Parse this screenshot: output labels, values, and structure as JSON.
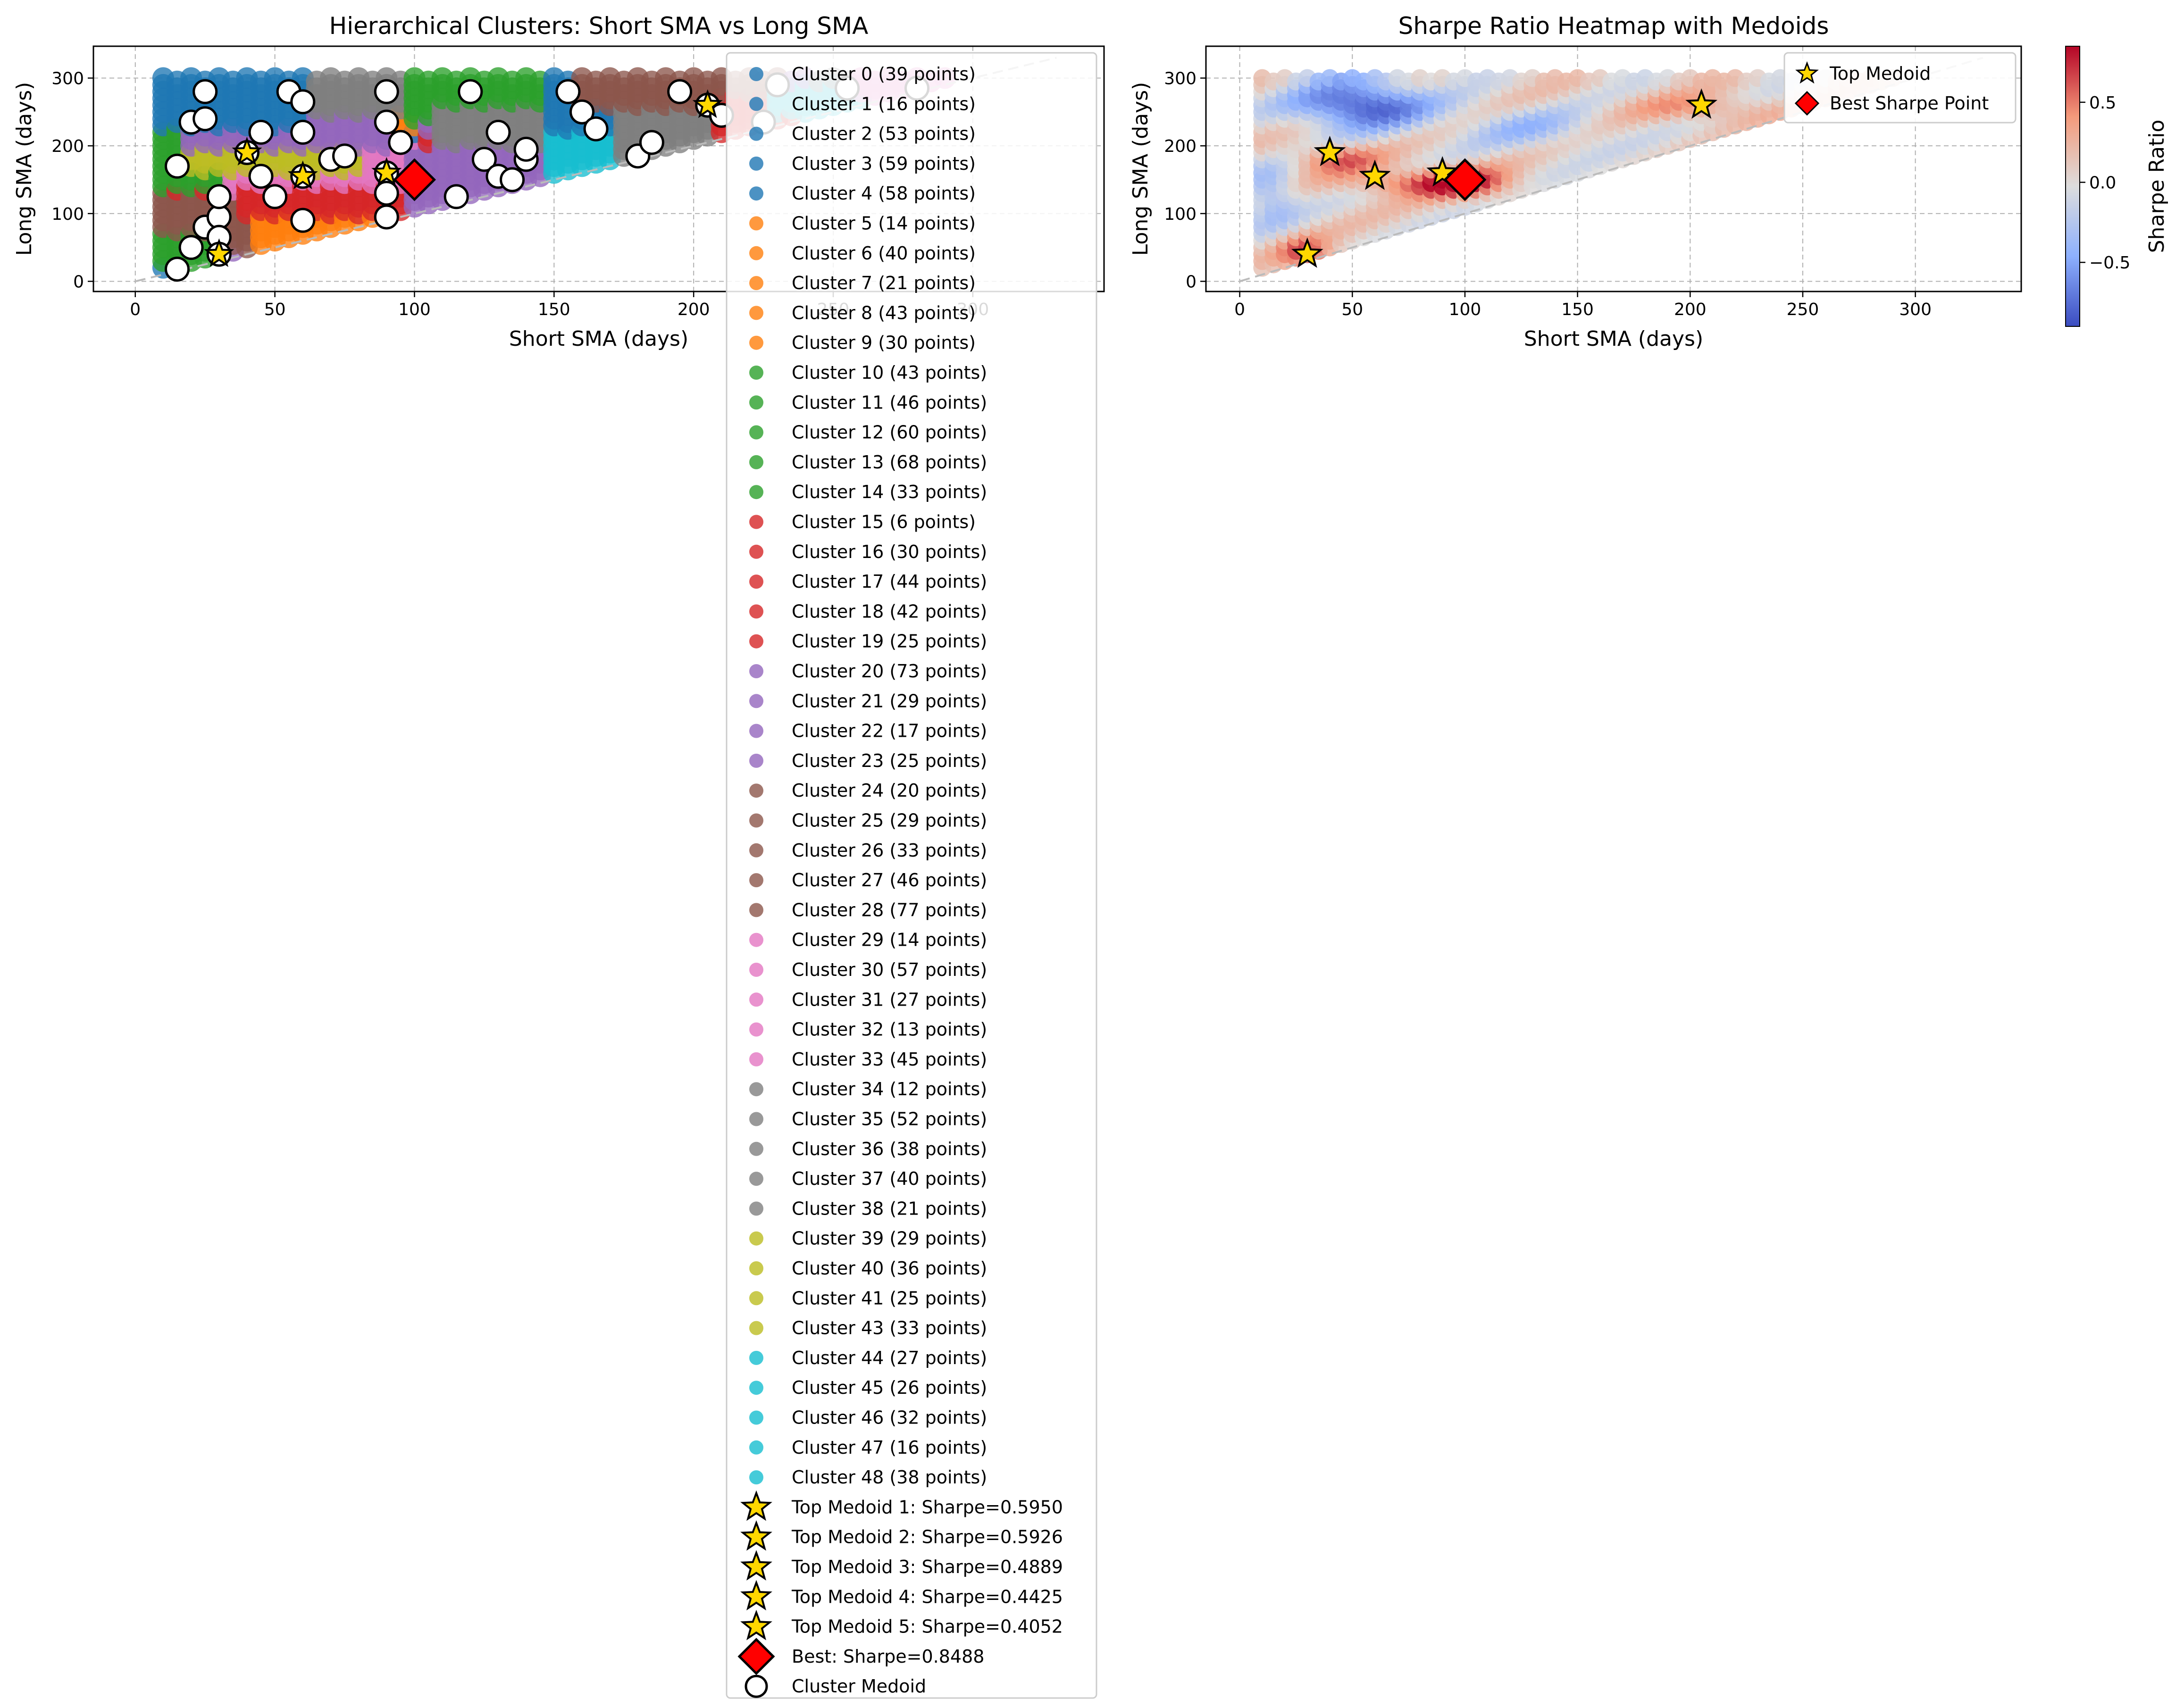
{
  "chart_data": [
    {
      "type": "scatter",
      "title": "Hierarchical Clusters: Short SMA vs Long SMA",
      "xlabel": "Short SMA (days)",
      "ylabel": "Long SMA (days)",
      "xlim": [
        -15,
        347
      ],
      "ylim": [
        -15,
        347
      ],
      "xticks": [
        0,
        50,
        100,
        150,
        200,
        250,
        300
      ],
      "yticks": [
        0,
        100,
        200,
        300
      ],
      "grid": true,
      "legend_position": "right, overlapping plot and extending below",
      "cluster_colors": [
        "#1f77b4",
        "#ff7f0e",
        "#2ca02c",
        "#d62728",
        "#9467bd",
        "#8c564b",
        "#e377c2",
        "#7f7f7f",
        "#bcbd22",
        "#17becf"
      ],
      "clusters": [
        {
          "label": "Cluster 0 (39 points)",
          "color": "#1f77b4"
        },
        {
          "label": "Cluster 1 (16 points)",
          "color": "#1f77b4"
        },
        {
          "label": "Cluster 2 (53 points)",
          "color": "#1f77b4"
        },
        {
          "label": "Cluster 3 (59 points)",
          "color": "#1f77b4"
        },
        {
          "label": "Cluster 4 (58 points)",
          "color": "#1f77b4"
        },
        {
          "label": "Cluster 5 (14 points)",
          "color": "#ff7f0e"
        },
        {
          "label": "Cluster 6 (40 points)",
          "color": "#ff7f0e"
        },
        {
          "label": "Cluster 7 (21 points)",
          "color": "#ff7f0e"
        },
        {
          "label": "Cluster 8 (43 points)",
          "color": "#ff7f0e"
        },
        {
          "label": "Cluster 9 (30 points)",
          "color": "#ff7f0e"
        },
        {
          "label": "Cluster 10 (43 points)",
          "color": "#2ca02c"
        },
        {
          "label": "Cluster 11 (46 points)",
          "color": "#2ca02c"
        },
        {
          "label": "Cluster 12 (60 points)",
          "color": "#2ca02c"
        },
        {
          "label": "Cluster 13 (68 points)",
          "color": "#2ca02c"
        },
        {
          "label": "Cluster 14 (33 points)",
          "color": "#2ca02c"
        },
        {
          "label": "Cluster 15 (6 points)",
          "color": "#d62728"
        },
        {
          "label": "Cluster 16 (30 points)",
          "color": "#d62728"
        },
        {
          "label": "Cluster 17 (44 points)",
          "color": "#d62728"
        },
        {
          "label": "Cluster 18 (42 points)",
          "color": "#d62728"
        },
        {
          "label": "Cluster 19 (25 points)",
          "color": "#d62728"
        },
        {
          "label": "Cluster 20 (73 points)",
          "color": "#9467bd"
        },
        {
          "label": "Cluster 21 (29 points)",
          "color": "#9467bd"
        },
        {
          "label": "Cluster 22 (17 points)",
          "color": "#9467bd"
        },
        {
          "label": "Cluster 23 (25 points)",
          "color": "#9467bd"
        },
        {
          "label": "Cluster 24 (20 points)",
          "color": "#8c564b"
        },
        {
          "label": "Cluster 25 (29 points)",
          "color": "#8c564b"
        },
        {
          "label": "Cluster 26 (33 points)",
          "color": "#8c564b"
        },
        {
          "label": "Cluster 27 (46 points)",
          "color": "#8c564b"
        },
        {
          "label": "Cluster 28 (77 points)",
          "color": "#8c564b"
        },
        {
          "label": "Cluster 29 (14 points)",
          "color": "#e377c2"
        },
        {
          "label": "Cluster 30 (57 points)",
          "color": "#e377c2"
        },
        {
          "label": "Cluster 31 (27 points)",
          "color": "#e377c2"
        },
        {
          "label": "Cluster 32 (13 points)",
          "color": "#e377c2"
        },
        {
          "label": "Cluster 33 (45 points)",
          "color": "#e377c2"
        },
        {
          "label": "Cluster 34 (12 points)",
          "color": "#7f7f7f"
        },
        {
          "label": "Cluster 35 (52 points)",
          "color": "#7f7f7f"
        },
        {
          "label": "Cluster 36 (38 points)",
          "color": "#7f7f7f"
        },
        {
          "label": "Cluster 37 (40 points)",
          "color": "#7f7f7f"
        },
        {
          "label": "Cluster 38 (21 points)",
          "color": "#7f7f7f"
        },
        {
          "label": "Cluster 39 (29 points)",
          "color": "#bcbd22"
        },
        {
          "label": "Cluster 40 (36 points)",
          "color": "#bcbd22"
        },
        {
          "label": "Cluster 41 (25 points)",
          "color": "#bcbd22"
        },
        {
          "label": "Cluster 43 (33 points)",
          "color": "#bcbd22"
        },
        {
          "label": "Cluster 44 (27 points)",
          "color": "#17becf"
        },
        {
          "label": "Cluster 45 (26 points)",
          "color": "#17becf"
        },
        {
          "label": "Cluster 46 (32 points)",
          "color": "#17becf"
        },
        {
          "label": "Cluster 47 (16 points)",
          "color": "#17becf"
        },
        {
          "label": "Cluster 48 (38 points)",
          "color": "#17becf"
        }
      ],
      "cluster_regions": [
        {
          "color": "#2ca02c",
          "polygon": [
            [
              10,
              140
            ],
            [
              30,
              160
            ],
            [
              25,
              300
            ],
            [
              10,
              300
            ]
          ]
        },
        {
          "color": "#8c564b",
          "polygon": [
            [
              10,
              50
            ],
            [
              35,
              75
            ],
            [
              40,
              130
            ],
            [
              10,
              130
            ]
          ]
        },
        {
          "color": "#2ca02c",
          "polygon": [
            [
              10,
              25
            ],
            [
              30,
              45
            ],
            [
              30,
              70
            ],
            [
              10,
              60
            ]
          ]
        },
        {
          "color": "#ff7f0e",
          "polygon": [
            [
              45,
              55
            ],
            [
              110,
              125
            ],
            [
              100,
              135
            ],
            [
              45,
              110
            ]
          ]
        },
        {
          "color": "#d62728",
          "polygon": [
            [
              40,
              100
            ],
            [
              100,
              110
            ],
            [
              95,
              150
            ],
            [
              40,
              170
            ]
          ]
        },
        {
          "color": "#e377c2",
          "polygon": [
            [
              40,
              145
            ],
            [
              100,
              160
            ],
            [
              95,
              205
            ],
            [
              40,
              215
            ]
          ]
        },
        {
          "color": "#bcbd22",
          "polygon": [
            [
              20,
              175
            ],
            [
              80,
              165
            ],
            [
              80,
              215
            ],
            [
              20,
              220
            ]
          ]
        },
        {
          "color": "#9467bd",
          "polygon": [
            [
              20,
              200
            ],
            [
              90,
              215
            ],
            [
              85,
              250
            ],
            [
              20,
              250
            ]
          ]
        },
        {
          "color": "#7f7f7f",
          "polygon": [
            [
              25,
              250
            ],
            [
              100,
              250
            ],
            [
              110,
              300
            ],
            [
              25,
              300
            ]
          ]
        },
        {
          "color": "#1f77b4",
          "polygon": [
            [
              10,
              230
            ],
            [
              60,
              240
            ],
            [
              60,
              300
            ],
            [
              10,
              300
            ]
          ]
        },
        {
          "color": "#2ca02c",
          "polygon": [
            [
              100,
              245
            ],
            [
              160,
              240
            ],
            [
              170,
              300
            ],
            [
              100,
              300
            ]
          ]
        },
        {
          "color": "#7f7f7f",
          "polygon": [
            [
              110,
              200
            ],
            [
              170,
              210
            ],
            [
              175,
              260
            ],
            [
              110,
              260
            ]
          ]
        },
        {
          "color": "#9467bd",
          "polygon": [
            [
              100,
              110
            ],
            [
              150,
              150
            ],
            [
              140,
              200
            ],
            [
              100,
              190
            ]
          ]
        },
        {
          "color": "#1f77b4",
          "polygon": [
            [
              150,
              160
            ],
            [
              230,
              240
            ],
            [
              230,
              300
            ],
            [
              150,
              300
            ]
          ]
        },
        {
          "color": "#17becf",
          "polygon": [
            [
              150,
              160
            ],
            [
              200,
              200
            ],
            [
              190,
              220
            ],
            [
              150,
              190
            ]
          ]
        },
        {
          "color": "#8c564b",
          "polygon": [
            [
              160,
              260
            ],
            [
              230,
              270
            ],
            [
              230,
              300
            ],
            [
              160,
              300
            ]
          ]
        },
        {
          "color": "#7f7f7f",
          "polygon": [
            [
              175,
              180
            ],
            [
              230,
              235
            ],
            [
              215,
              255
            ],
            [
              175,
              230
            ]
          ]
        },
        {
          "color": "#d62728",
          "polygon": [
            [
              210,
              220
            ],
            [
              260,
              265
            ],
            [
              245,
              275
            ],
            [
              210,
              240
            ]
          ]
        },
        {
          "color": "#17becf",
          "polygon": [
            [
              230,
              250
            ],
            [
              270,
              270
            ],
            [
              260,
              290
            ],
            [
              230,
              280
            ]
          ]
        },
        {
          "color": "#e377c2",
          "polygon": [
            [
              260,
              275
            ],
            [
              290,
              295
            ],
            [
              290,
              300
            ],
            [
              260,
              300
            ]
          ]
        }
      ],
      "reference_line": {
        "x": [
          0,
          330
        ],
        "y": [
          0,
          330
        ],
        "style": "dashed",
        "color": "#bbbbbb"
      },
      "medoids": [
        [
          15,
          18
        ],
        [
          20,
          50
        ],
        [
          25,
          80
        ],
        [
          30,
          95
        ],
        [
          30,
          65
        ],
        [
          30,
          125
        ],
        [
          30,
          40
        ],
        [
          20,
          235
        ],
        [
          25,
          240
        ],
        [
          25,
          280
        ],
        [
          15,
          170
        ],
        [
          40,
          190
        ],
        [
          45,
          220
        ],
        [
          45,
          155
        ],
        [
          50,
          125
        ],
        [
          55,
          280
        ],
        [
          60,
          265
        ],
        [
          60,
          220
        ],
        [
          60,
          155
        ],
        [
          60,
          90
        ],
        [
          70,
          180
        ],
        [
          75,
          185
        ],
        [
          90,
          280
        ],
        [
          90,
          235
        ],
        [
          90,
          160
        ],
        [
          90,
          130
        ],
        [
          90,
          95
        ],
        [
          95,
          205
        ],
        [
          100,
          150
        ],
        [
          115,
          125
        ],
        [
          120,
          280
        ],
        [
          125,
          180
        ],
        [
          130,
          220
        ],
        [
          130,
          155
        ],
        [
          135,
          150
        ],
        [
          140,
          180
        ],
        [
          140,
          195
        ],
        [
          155,
          280
        ],
        [
          160,
          250
        ],
        [
          165,
          225
        ],
        [
          180,
          185
        ],
        [
          185,
          205
        ],
        [
          195,
          280
        ],
        [
          205,
          260
        ],
        [
          210,
          245
        ],
        [
          225,
          235
        ],
        [
          230,
          290
        ],
        [
          255,
          285
        ],
        [
          280,
          285
        ]
      ],
      "top_medoids": [
        {
          "x": 30,
          "y": 40,
          "label": "Top Medoid 1: Sharpe=0.5950"
        },
        {
          "x": 40,
          "y": 190,
          "label": "Top Medoid 2: Sharpe=0.5926"
        },
        {
          "x": 60,
          "y": 155,
          "label": "Top Medoid 3: Sharpe=0.4889"
        },
        {
          "x": 90,
          "y": 160,
          "label": "Top Medoid 4: Sharpe=0.4425"
        },
        {
          "x": 205,
          "y": 260,
          "label": "Top Medoid 5: Sharpe=0.4052"
        }
      ],
      "best": {
        "x": 100,
        "y": 150,
        "label": "Best: Sharpe=0.8488"
      },
      "medoid_legend_label": "Cluster Medoid",
      "medoid_colors": {
        "star_fill": "#ffd700",
        "best_fill": "#ff0000",
        "medoid_fill": "#ffffff",
        "edge": "#000000"
      }
    },
    {
      "type": "heatmap",
      "title": "Sharpe Ratio Heatmap with Medoids",
      "xlabel": "Short SMA (days)",
      "ylabel": "Long SMA (days)",
      "xlim": [
        -15,
        347
      ],
      "ylim": [
        -15,
        347
      ],
      "xticks": [
        0,
        50,
        100,
        150,
        200,
        250,
        300
      ],
      "yticks": [
        0,
        100,
        200,
        300
      ],
      "grid": true,
      "colorbar": {
        "label": "Sharpe Ratio",
        "range": [
          -0.9,
          0.85
        ],
        "ticks": [
          -0.5,
          0.0,
          0.5
        ],
        "tick_labels": [
          "−0.5",
          "0.0",
          "0.5"
        ],
        "colormap": "coolwarm"
      },
      "legend_position": "top-right",
      "legend": [
        {
          "label": "Top Medoid",
          "marker": "star"
        },
        {
          "label": "Best Sharpe Point",
          "marker": "diamond"
        }
      ],
      "top_medoids": [
        [
          30,
          40
        ],
        [
          40,
          190
        ],
        [
          60,
          155
        ],
        [
          90,
          160
        ],
        [
          205,
          260
        ]
      ],
      "best": {
        "x": 100,
        "y": 150
      },
      "reference_line": {
        "x": [
          0,
          330
        ],
        "y": [
          0,
          330
        ],
        "style": "dashed",
        "color": "#bbbbbb"
      }
    }
  ]
}
